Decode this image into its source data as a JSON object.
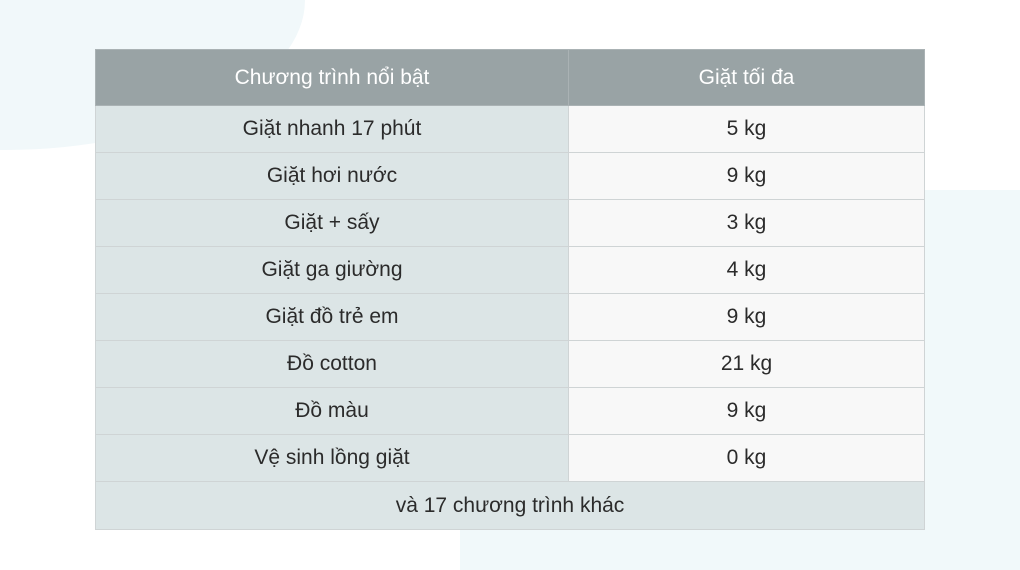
{
  "table": {
    "headers": [
      "Chương trình nổi bật",
      "Giặt tối đa"
    ],
    "rows": [
      [
        "Giặt nhanh 17 phút",
        "5 kg"
      ],
      [
        "Giặt hơi nước",
        "9 kg"
      ],
      [
        "Giặt + sấy",
        "3 kg"
      ],
      [
        "Giặt ga giường",
        "4 kg"
      ],
      [
        "Giặt đồ trẻ em",
        "9 kg"
      ],
      [
        "Đồ cotton",
        "21 kg"
      ],
      [
        "Đồ màu",
        "9 kg"
      ],
      [
        "Vệ sinh lồng giặt",
        "0 kg"
      ]
    ],
    "footer": "và 17 chương trình khác"
  },
  "colors": {
    "header_bg": "#99a3a5",
    "left_col_bg": "#dce5e6",
    "right_col_bg": "#f8f8f8"
  }
}
